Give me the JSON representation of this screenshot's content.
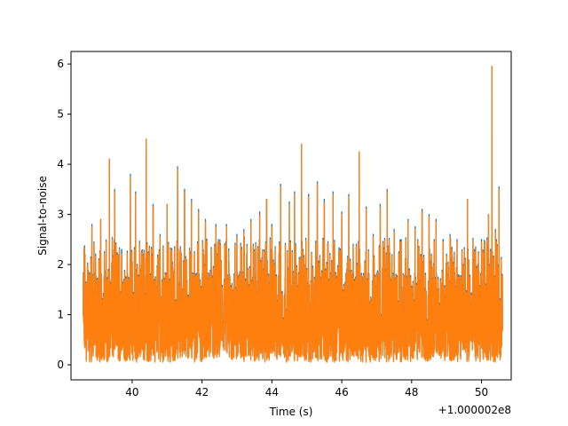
{
  "chart_data": {
    "type": "line",
    "title": "",
    "xlabel": "Time (s)",
    "ylabel": "Signal-to-noise",
    "x_offset_label": "+1.000002e8",
    "xlim": [
      38.25,
      50.85
    ],
    "ylim": [
      -0.3,
      6.25
    ],
    "x_ticks": [
      40,
      42,
      44,
      46,
      48,
      50
    ],
    "x_tick_labels": [
      "40",
      "42",
      "44",
      "46",
      "48",
      "50"
    ],
    "y_ticks": [
      0,
      1,
      2,
      3,
      4,
      5,
      6
    ],
    "y_tick_labels": [
      "0",
      "1",
      "2",
      "3",
      "4",
      "5",
      "6"
    ],
    "grid": false,
    "legend": "none",
    "data_range_x": [
      38.6,
      50.6
    ],
    "series": [
      {
        "color": "#1f77b4",
        "peaks": [
          [
            38.65,
            2.2
          ],
          [
            38.85,
            2.8
          ],
          [
            39.1,
            2.9
          ],
          [
            39.35,
            4.1
          ],
          [
            39.5,
            3.5
          ],
          [
            39.7,
            2.3
          ],
          [
            39.95,
            3.8
          ],
          [
            40.1,
            3.45
          ],
          [
            40.4,
            4.5
          ],
          [
            40.6,
            3.2
          ],
          [
            40.8,
            2.6
          ],
          [
            41.0,
            3.2
          ],
          [
            41.3,
            3.95
          ],
          [
            41.5,
            3.5
          ],
          [
            41.7,
            3.3
          ],
          [
            41.9,
            3.1
          ],
          [
            42.1,
            2.9
          ],
          [
            42.4,
            2.8
          ],
          [
            42.7,
            2.8
          ],
          [
            43.0,
            2.6
          ],
          [
            43.2,
            2.7
          ],
          [
            43.4,
            2.9
          ],
          [
            43.65,
            3.05
          ],
          [
            43.85,
            3.3
          ],
          [
            44.0,
            2.8
          ],
          [
            44.25,
            3.6
          ],
          [
            44.5,
            3.25
          ],
          [
            44.65,
            3.45
          ],
          [
            44.85,
            4.4
          ],
          [
            45.05,
            3.4
          ],
          [
            45.3,
            3.65
          ],
          [
            45.5,
            3.3
          ],
          [
            45.75,
            3.45
          ],
          [
            46.0,
            3.05
          ],
          [
            46.2,
            3.4
          ],
          [
            46.5,
            4.25
          ],
          [
            46.7,
            3.15
          ],
          [
            46.9,
            2.6
          ],
          [
            47.1,
            3.2
          ],
          [
            47.3,
            3.5
          ],
          [
            47.5,
            2.7
          ],
          [
            47.7,
            2.5
          ],
          [
            47.9,
            2.9
          ],
          [
            48.1,
            2.75
          ],
          [
            48.3,
            3.1
          ],
          [
            48.5,
            3.0
          ],
          [
            48.7,
            2.9
          ],
          [
            48.9,
            2.5
          ],
          [
            49.1,
            2.6
          ],
          [
            49.3,
            2.5
          ],
          [
            49.6,
            3.3
          ],
          [
            49.8,
            2.3
          ],
          [
            50.0,
            2.5
          ],
          [
            50.2,
            3.0
          ],
          [
            50.3,
            5.95
          ],
          [
            50.4,
            2.7
          ],
          [
            50.5,
            3.55
          ]
        ]
      },
      {
        "color": "#ff7f0e",
        "peaks": [
          [
            38.65,
            2.15
          ],
          [
            38.85,
            2.75
          ],
          [
            39.1,
            2.9
          ],
          [
            39.35,
            4.1
          ],
          [
            39.5,
            3.45
          ],
          [
            39.7,
            2.2
          ],
          [
            39.95,
            3.75
          ],
          [
            40.1,
            3.4
          ],
          [
            40.4,
            4.5
          ],
          [
            40.6,
            3.15
          ],
          [
            40.8,
            2.55
          ],
          [
            41.0,
            3.2
          ],
          [
            41.3,
            3.9
          ],
          [
            41.5,
            3.45
          ],
          [
            41.7,
            3.25
          ],
          [
            41.9,
            3.05
          ],
          [
            42.1,
            2.85
          ],
          [
            42.4,
            2.75
          ],
          [
            42.7,
            2.75
          ],
          [
            43.0,
            2.55
          ],
          [
            43.2,
            2.65
          ],
          [
            43.4,
            2.85
          ],
          [
            43.65,
            3.0
          ],
          [
            43.85,
            3.3
          ],
          [
            44.0,
            2.75
          ],
          [
            44.25,
            3.55
          ],
          [
            44.5,
            3.2
          ],
          [
            44.65,
            3.4
          ],
          [
            44.85,
            4.4
          ],
          [
            45.05,
            3.35
          ],
          [
            45.3,
            3.6
          ],
          [
            45.5,
            3.25
          ],
          [
            45.75,
            3.4
          ],
          [
            46.0,
            3.0
          ],
          [
            46.2,
            3.35
          ],
          [
            46.5,
            4.25
          ],
          [
            46.7,
            3.1
          ],
          [
            46.9,
            2.55
          ],
          [
            47.1,
            3.15
          ],
          [
            47.3,
            3.45
          ],
          [
            47.5,
            2.65
          ],
          [
            47.7,
            2.45
          ],
          [
            47.9,
            2.85
          ],
          [
            48.1,
            2.7
          ],
          [
            48.3,
            3.05
          ],
          [
            48.5,
            2.95
          ],
          [
            48.7,
            2.85
          ],
          [
            48.9,
            2.45
          ],
          [
            49.1,
            2.55
          ],
          [
            49.3,
            2.45
          ],
          [
            49.6,
            3.3
          ],
          [
            49.8,
            2.25
          ],
          [
            50.0,
            2.45
          ],
          [
            50.2,
            3.0
          ],
          [
            50.3,
            5.95
          ],
          [
            50.4,
            2.65
          ],
          [
            50.5,
            3.5
          ]
        ]
      }
    ]
  }
}
